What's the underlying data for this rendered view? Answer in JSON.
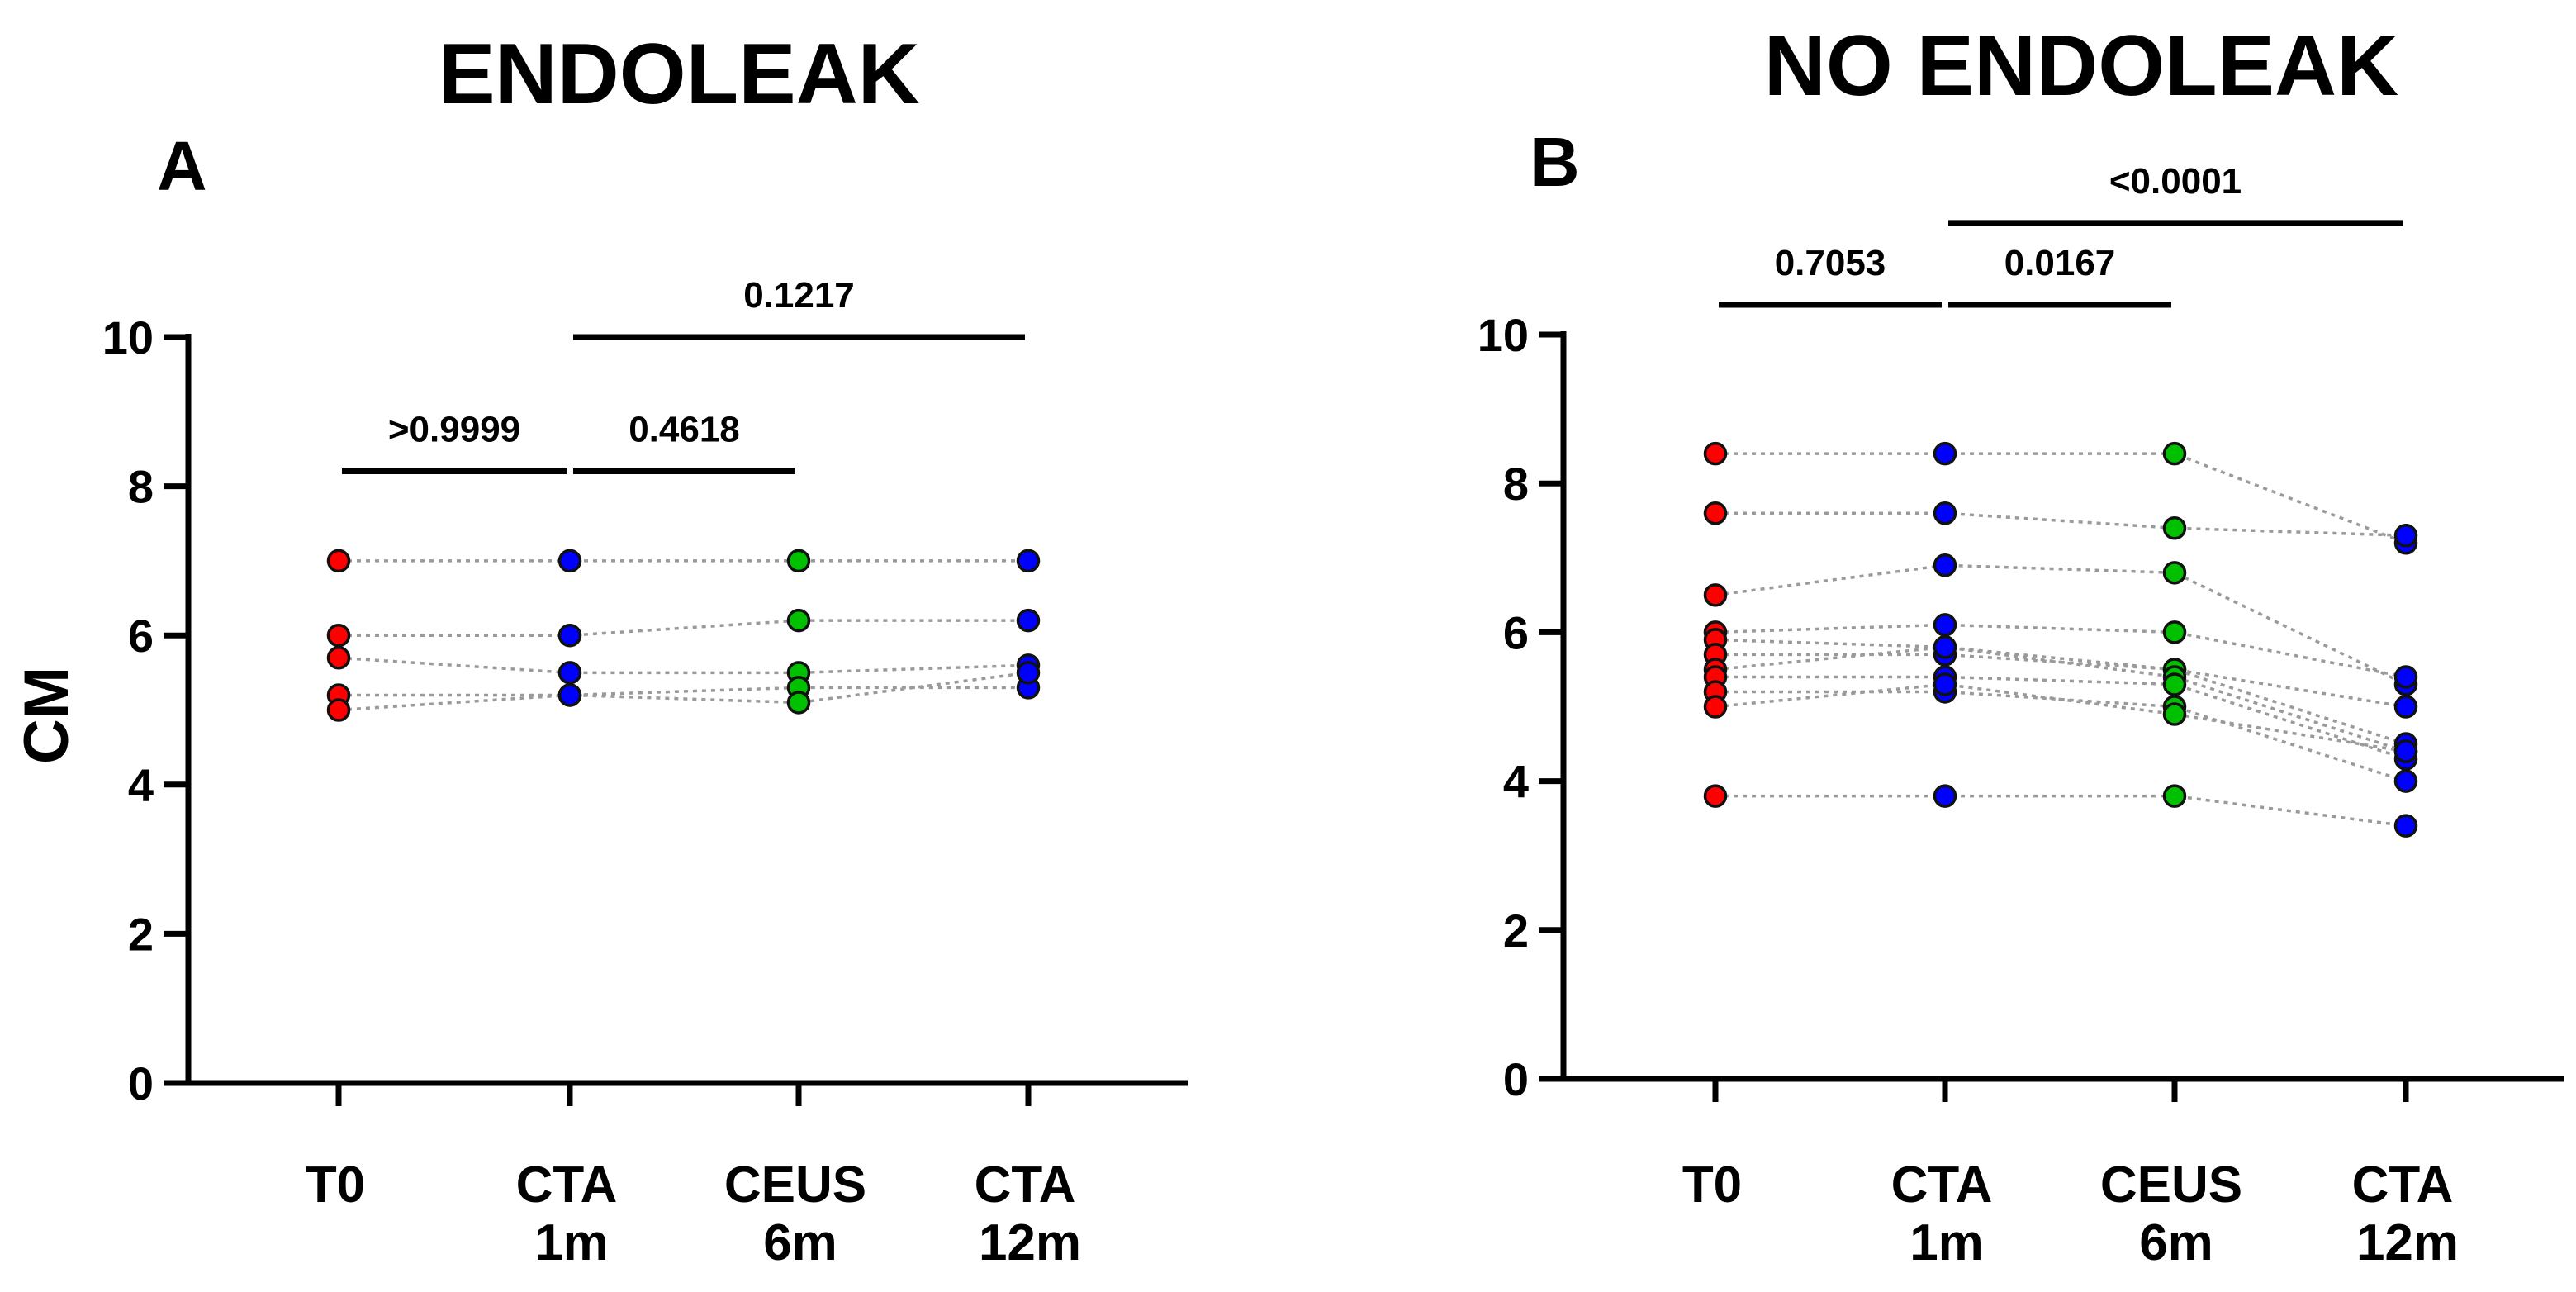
{
  "chart_data": [
    {
      "panel": "A",
      "type": "scatter",
      "subtype": "paired dot plot",
      "title": "ENDOLEAK",
      "ylabel": "CM",
      "ylim": [
        0,
        10
      ],
      "yticks": [
        "0",
        "2",
        "4",
        "6",
        "8",
        "10"
      ],
      "categories": [
        {
          "line1": "T0",
          "line2": ""
        },
        {
          "line1": "CTA",
          "line2": "1m"
        },
        {
          "line1": "CEUS",
          "line2": "6m"
        },
        {
          "line1": "CTA",
          "line2": "12m"
        }
      ],
      "point_colors": [
        "#ff0000",
        "#0000ff",
        "#00c000",
        "#0000ff"
      ],
      "series": [
        {
          "values": [
            7.0,
            7.0,
            7.0,
            7.0
          ]
        },
        {
          "values": [
            6.0,
            6.0,
            6.2,
            6.2
          ]
        },
        {
          "values": [
            5.7,
            5.5,
            5.5,
            5.6
          ]
        },
        {
          "values": [
            5.2,
            5.2,
            5.3,
            5.3
          ]
        },
        {
          "values": [
            5.0,
            5.2,
            5.1,
            5.5
          ]
        }
      ],
      "comparisons": [
        {
          "from": 0,
          "to": 1,
          "y": 8.2,
          "label": ">0.9999"
        },
        {
          "from": 1,
          "to": 2,
          "y": 8.2,
          "label": "0.4618"
        },
        {
          "from": 1,
          "to": 3,
          "y": 10.0,
          "label": "0.1217"
        }
      ]
    },
    {
      "panel": "B",
      "type": "scatter",
      "subtype": "paired dot plot",
      "title": "NO ENDOLEAK",
      "ylabel": "",
      "ylim": [
        0,
        10
      ],
      "yticks": [
        "0",
        "2",
        "4",
        "6",
        "8",
        "10"
      ],
      "categories": [
        {
          "line1": "T0",
          "line2": ""
        },
        {
          "line1": "CTA",
          "line2": "1m"
        },
        {
          "line1": "CEUS",
          "line2": "6m"
        },
        {
          "line1": "CTA",
          "line2": "12m"
        }
      ],
      "point_colors": [
        "#ff0000",
        "#0000ff",
        "#00c000",
        "#0000ff"
      ],
      "series": [
        {
          "values": [
            8.4,
            8.4,
            8.4,
            7.2
          ]
        },
        {
          "values": [
            7.6,
            7.6,
            7.4,
            7.3
          ]
        },
        {
          "values": [
            6.5,
            6.9,
            6.8,
            5.3
          ]
        },
        {
          "values": [
            6.0,
            6.1,
            6.0,
            5.4
          ]
        },
        {
          "values": [
            5.9,
            5.8,
            5.5,
            4.5
          ]
        },
        {
          "values": [
            5.7,
            5.7,
            5.5,
            5.0
          ]
        },
        {
          "values": [
            5.5,
            5.8,
            5.4,
            4.4
          ]
        },
        {
          "values": [
            5.4,
            5.4,
            5.3,
            4.3
          ]
        },
        {
          "values": [
            5.2,
            5.2,
            5.0,
            4.0
          ]
        },
        {
          "values": [
            5.0,
            5.3,
            4.9,
            4.4
          ]
        },
        {
          "values": [
            3.8,
            3.8,
            3.8,
            3.4
          ]
        }
      ],
      "comparisons": [
        {
          "from": 0,
          "to": 1,
          "y": 10.4,
          "label": "0.7053"
        },
        {
          "from": 1,
          "to": 2,
          "y": 10.4,
          "label": "0.0167"
        },
        {
          "from": 1,
          "to": 3,
          "y": 11.5,
          "label": "<0.0001"
        }
      ]
    }
  ]
}
